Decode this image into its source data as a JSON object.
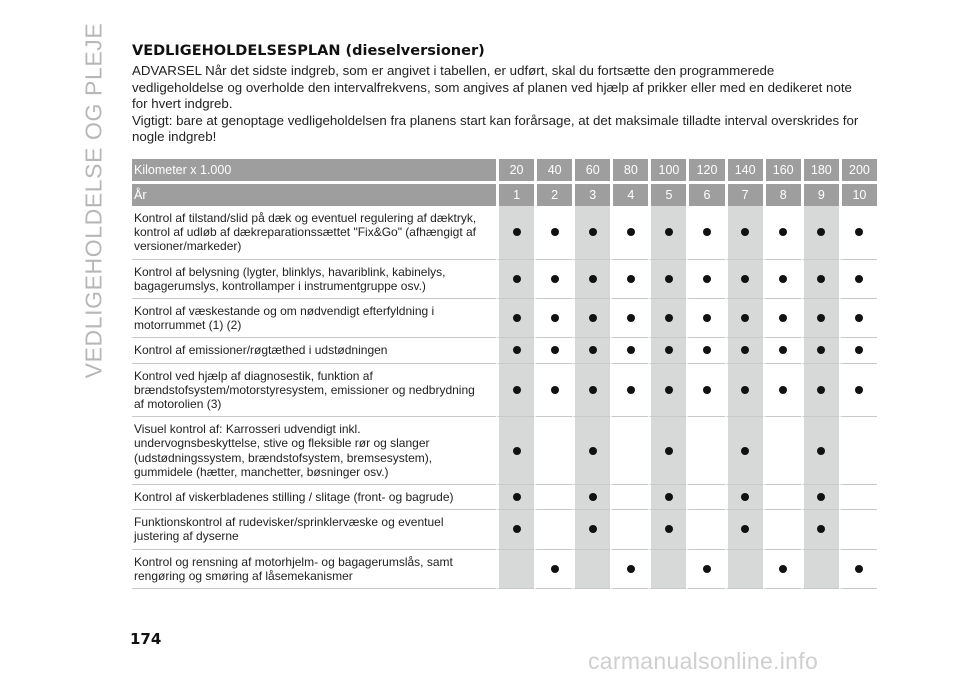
{
  "side_title": "VEDLIGEHOLDELSE OG PLEJE",
  "heading": "VEDLIGEHOLDELSESPLAN (dieselversioner)",
  "intro": [
    "ADVARSEL Når det sidste indgreb, som er angivet i tabellen, er udført, skal du fortsætte den programmerede vedligeholdelse og overholde den intervalfrekvens, som angives af planen ved hjælp af prikker eller med en dedikeret note for hvert indgreb.",
    "Vigtigt: bare at genoptage vedligeholdelsen fra planens start kan forårsage, at det maksimale tilladte interval overskrides for nogle indgreb!"
  ],
  "table": {
    "header_km_label": "Kilometer x 1.000",
    "km": [
      "20",
      "40",
      "60",
      "80",
      "100",
      "120",
      "140",
      "160",
      "180",
      "200"
    ],
    "header_year_label": "År",
    "years": [
      "1",
      "2",
      "3",
      "4",
      "5",
      "6",
      "7",
      "8",
      "9",
      "10"
    ],
    "shaded_columns": [
      0,
      2,
      4,
      6,
      8
    ],
    "rows": [
      {
        "label": "Kontrol af tilstand/slid på dæk og eventuel regulering af dæktryk, kontrol af udløb af dækreparationssættet \"Fix&Go\" (afhængigt af versioner/markeder)",
        "marks": [
          1,
          1,
          1,
          1,
          1,
          1,
          1,
          1,
          1,
          1
        ]
      },
      {
        "label": "Kontrol af belysning (lygter, blinklys, havariblink, kabinelys, bagagerumslys, kontrollamper i instrumentgruppe osv.)",
        "marks": [
          1,
          1,
          1,
          1,
          1,
          1,
          1,
          1,
          1,
          1
        ]
      },
      {
        "label": "Kontrol af væskestande og om nødvendigt efterfyldning i motorrummet (1) (2)",
        "marks": [
          1,
          1,
          1,
          1,
          1,
          1,
          1,
          1,
          1,
          1
        ]
      },
      {
        "label": "Kontrol af emissioner/røgtæthed i udstødningen",
        "marks": [
          1,
          1,
          1,
          1,
          1,
          1,
          1,
          1,
          1,
          1
        ]
      },
      {
        "label": "Kontrol ved hjælp af diagnosestik, funktion af brændstofsystem/motorstyresystem, emissioner og nedbrydning af motorolien (3)",
        "marks": [
          1,
          1,
          1,
          1,
          1,
          1,
          1,
          1,
          1,
          1
        ]
      },
      {
        "label": "Visuel kontrol af: Karrosseri udvendigt inkl. undervognsbeskyttelse, stive og fleksible rør og slanger (udstødningssystem, brændstofsystem, bremsesystem), gummidele (hætter, manchetter, bøsninger osv.)",
        "marks": [
          1,
          0,
          1,
          0,
          1,
          0,
          1,
          0,
          1,
          0
        ]
      },
      {
        "label": "Kontrol af viskerbladenes stilling / slitage (front- og bagrude)",
        "marks": [
          1,
          0,
          1,
          0,
          1,
          0,
          1,
          0,
          1,
          0
        ]
      },
      {
        "label": "Funktionskontrol af rudevisker/sprinklervæske og eventuel justering af dyserne",
        "marks": [
          1,
          0,
          1,
          0,
          1,
          0,
          1,
          0,
          1,
          0
        ]
      },
      {
        "label": "Kontrol og rensning af motorhjelm- og bagagerumslås, samt rengøring og smøring af låsemekanismer",
        "marks": [
          0,
          1,
          0,
          1,
          0,
          1,
          0,
          1,
          0,
          1
        ]
      }
    ]
  },
  "page_number": "174",
  "watermark": "carmanualsonline.info"
}
